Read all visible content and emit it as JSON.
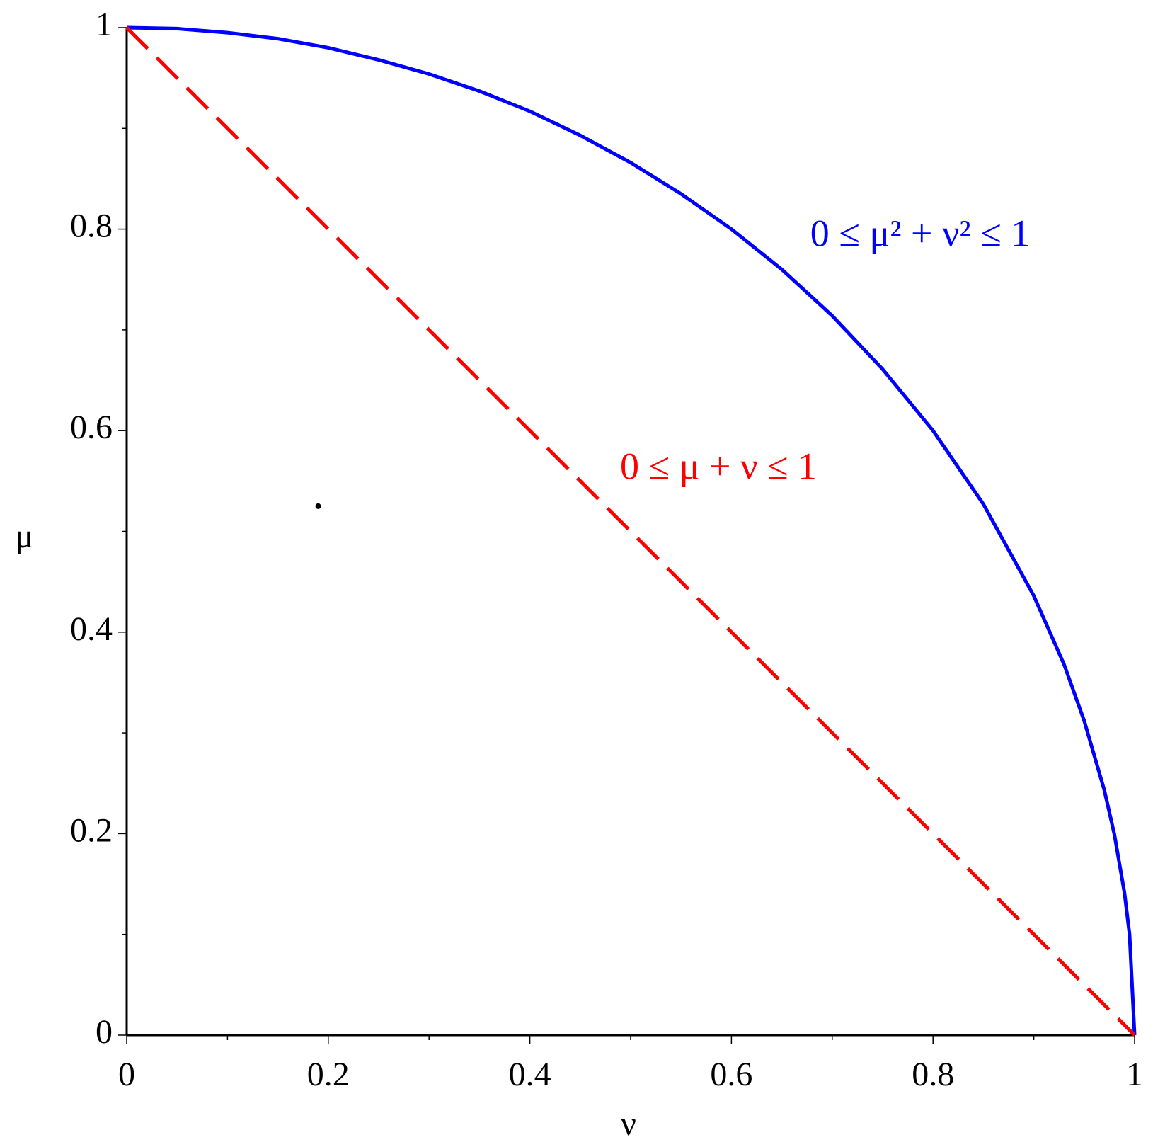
{
  "chart_data": {
    "type": "line",
    "x_label": "ν",
    "y_label": "μ",
    "series": [
      {
        "color": "#0000ff",
        "style": "solid",
        "x": [
          0,
          0.05,
          0.1,
          0.15,
          0.2,
          0.25,
          0.3,
          0.35,
          0.4,
          0.45,
          0.5,
          0.55,
          0.6,
          0.65,
          0.7,
          0.75,
          0.8,
          0.85,
          0.9,
          0.93,
          0.95,
          0.97,
          0.98,
          0.99,
          0.995,
          1
        ],
        "values": [
          1,
          0.999,
          0.995,
          0.989,
          0.98,
          0.968,
          0.954,
          0.937,
          0.917,
          0.893,
          0.866,
          0.835,
          0.8,
          0.76,
          0.714,
          0.661,
          0.6,
          0.527,
          0.436,
          0.368,
          0.312,
          0.243,
          0.199,
          0.141,
          0.1,
          0
        ]
      },
      {
        "color": "#ff0000",
        "style": "dashed",
        "x": [
          0,
          1
        ],
        "values": [
          1,
          0
        ]
      },
      {
        "color": "#000000",
        "style": "marker",
        "x": [
          0.19
        ],
        "values": [
          0.525
        ]
      }
    ],
    "annotations": [
      {
        "text": "0 ≤ μ² + ν² ≤ 1",
        "color": "#0000ff"
      },
      {
        "text": "0 ≤ μ + ν ≤ 1",
        "color": "#ff0000"
      }
    ],
    "xlim": [
      0,
      1
    ],
    "ylim": [
      0,
      1
    ],
    "xticks": [
      0,
      0.2,
      0.4,
      0.6,
      0.8,
      1
    ],
    "yticks": [
      0,
      0.2,
      0.4,
      0.6,
      0.8,
      1
    ],
    "xminor": [
      0.1,
      0.3,
      0.5,
      0.7,
      0.9
    ],
    "yminor": [
      0.1,
      0.3,
      0.5,
      0.7,
      0.9
    ],
    "grid": false
  }
}
